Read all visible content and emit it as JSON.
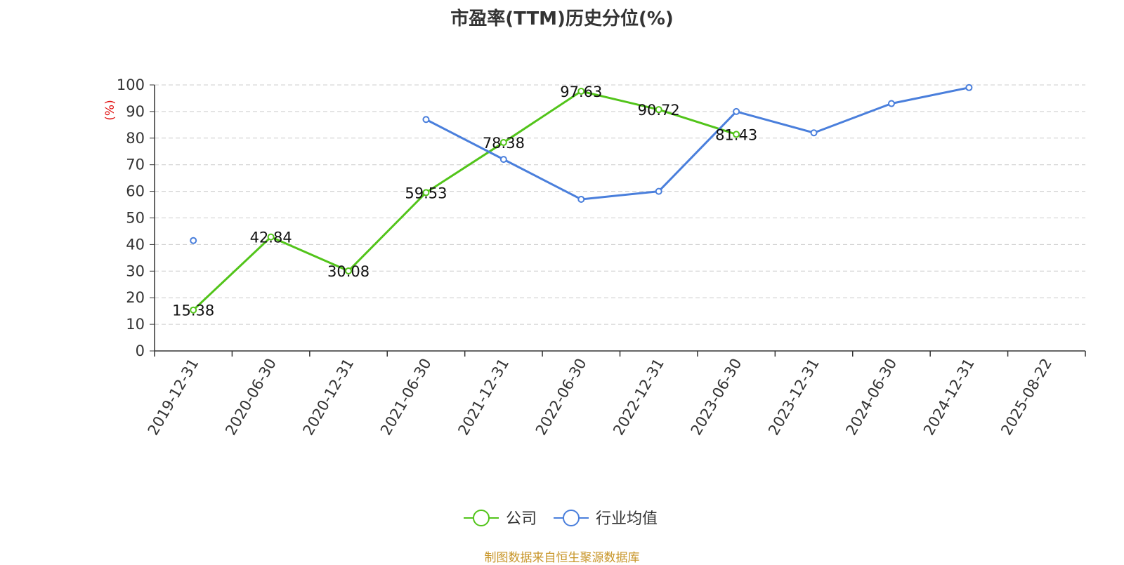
{
  "chart_data": {
    "type": "line",
    "title": "市盈率(TTM)历史分位(%)",
    "ylabel": "(%)",
    "xlabel": "",
    "ylim": [
      0,
      100
    ],
    "yticks": [
      0,
      10,
      20,
      30,
      40,
      50,
      60,
      70,
      80,
      90,
      100
    ],
    "categories": [
      "2019-12-31",
      "2020-06-30",
      "2020-12-31",
      "2021-06-30",
      "2021-12-31",
      "2022-06-30",
      "2022-12-31",
      "2023-06-30",
      "2023-12-31",
      "2024-06-30",
      "2024-12-31",
      "2025-08-22"
    ],
    "grid": true,
    "legend_position": "bottom-center",
    "series": [
      {
        "name": "公司",
        "color": "#52c41a",
        "values": [
          15.38,
          42.84,
          30.08,
          59.53,
          78.38,
          97.63,
          90.72,
          81.43,
          null,
          null,
          null,
          null
        ],
        "labels_shown": true
      },
      {
        "name": "行业均值",
        "color": "#4a7fdc",
        "values": [
          41.5,
          null,
          null,
          87,
          72,
          57,
          60,
          90,
          82,
          93,
          99,
          null
        ],
        "labels_shown": false
      }
    ]
  },
  "source": "制图数据来自恒生聚源数据库"
}
